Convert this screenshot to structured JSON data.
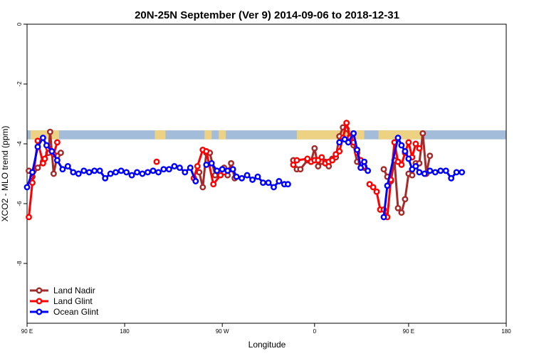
{
  "chart_data": {
    "type": "line",
    "title": "20N-25N September (Ver 9)   2014-09-06 to 2018-12-31",
    "xlabel": "Longitude",
    "ylabel": "XCO2 - MLO trend (ppm)",
    "xlim": [
      -90,
      180
    ],
    "ylim": [
      -10,
      0
    ],
    "x_ticks": [
      {
        "value": -90,
        "label": "90 E"
      },
      {
        "value": -35,
        "label": "180"
      },
      {
        "value": 20,
        "label": "90 W"
      },
      {
        "value": 72,
        "label": "0"
      },
      {
        "value": 125,
        "label": "90 E"
      },
      {
        "value": 180,
        "label": "180"
      }
    ],
    "y_ticks": [
      {
        "value": 0,
        "label": "0"
      },
      {
        "value": -2,
        "label": "-2"
      },
      {
        "value": -4,
        "label": "-4"
      },
      {
        "value": -6,
        "label": "-6"
      },
      {
        "value": -8,
        "label": "-8"
      }
    ],
    "grid": false,
    "legend_position": "bottom-left",
    "map_strip": {
      "y_range": [
        -3.85,
        -3.55
      ],
      "ocean_color": "#a3bcd9",
      "land_color": "#f5d47a"
    },
    "series": [
      {
        "name": "Land Nadir",
        "color": "#a52a2a",
        "segments": [
          [
            [
              -89,
              -4.9
            ],
            [
              -87,
              -5.1
            ],
            [
              -84,
              -4.8
            ],
            [
              -81,
              -4.6
            ],
            [
              -78,
              -4.3
            ],
            [
              -77,
              -3.6
            ],
            [
              -75,
              -5.0
            ],
            [
              -73,
              -4.4
            ],
            [
              -71,
              -4.3
            ]
          ],
          [
            [
              7,
              -4.95
            ],
            [
              9,
              -5.45
            ],
            [
              11,
              -4.3
            ],
            [
              13,
              -4.3
            ],
            [
              16,
              -5.05
            ],
            [
              19,
              -4.95
            ],
            [
              21,
              -4.8
            ],
            [
              23,
              -5.05
            ],
            [
              25,
              -4.65
            ],
            [
              27,
              -5.15
            ]
          ],
          [
            [
              60,
              -4.55
            ],
            [
              62,
              -4.85
            ],
            [
              64,
              -4.85
            ],
            [
              68,
              -4.55
            ],
            [
              70,
              -4.6
            ],
            [
              72,
              -4.15
            ],
            [
              74,
              -4.75
            ],
            [
              76,
              -4.6
            ],
            [
              78,
              -4.6
            ],
            [
              80,
              -4.75
            ],
            [
              82,
              -4.5
            ],
            [
              84,
              -4.45
            ],
            [
              86,
              -3.75
            ],
            [
              88,
              -3.45
            ],
            [
              90,
              -3.5
            ],
            [
              92,
              -3.75
            ],
            [
              94,
              -4.05
            ],
            [
              96,
              -4.6
            ],
            [
              98,
              -4.65
            ],
            [
              100,
              -4.8
            ]
          ],
          [
            [
              111,
              -4.85
            ],
            [
              113,
              -5.1
            ],
            [
              115,
              -5.25
            ],
            [
              117,
              -4.55
            ],
            [
              119,
              -6.15
            ],
            [
              121,
              -6.3
            ],
            [
              123,
              -5.85
            ],
            [
              125,
              -5.0
            ],
            [
              127,
              -5.05
            ],
            [
              129,
              -4.65
            ],
            [
              131,
              -4.65
            ],
            [
              133,
              -3.65
            ],
            [
              135,
              -5.0
            ],
            [
              137,
              -4.4
            ]
          ]
        ]
      },
      {
        "name": "Land Glint",
        "color": "#ff0000",
        "segments": [
          [
            [
              -89,
              -6.45
            ],
            [
              -87,
              -5.3
            ],
            [
              -84,
              -3.9
            ],
            [
              -81,
              -4.65
            ],
            [
              -80,
              -4.5
            ],
            [
              -78,
              -4.15
            ],
            [
              -75,
              -4.35
            ],
            [
              -73,
              -3.95
            ]
          ],
          [
            [
              -17,
              -4.6
            ]
          ],
          [
            [
              4,
              -5.15
            ],
            [
              6,
              -4.75
            ],
            [
              9,
              -4.2
            ],
            [
              11,
              -4.25
            ],
            [
              15,
              -5.35
            ],
            [
              19,
              -5.05
            ],
            [
              21,
              -4.95
            ],
            [
              25,
              -4.85
            ]
          ],
          [
            [
              60,
              -4.7
            ],
            [
              62,
              -4.55
            ],
            [
              68,
              -4.5
            ],
            [
              70,
              -4.6
            ],
            [
              72,
              -4.55
            ],
            [
              74,
              -4.55
            ],
            [
              76,
              -4.45
            ],
            [
              78,
              -4.65
            ],
            [
              80,
              -4.6
            ],
            [
              82,
              -4.55
            ],
            [
              84,
              -4.35
            ],
            [
              86,
              -4.25
            ],
            [
              88,
              -3.8
            ],
            [
              90,
              -3.3
            ],
            [
              92,
              -3.8
            ],
            [
              94,
              -3.95
            ],
            [
              96,
              -4.3
            ],
            [
              98,
              -4.55
            ],
            [
              100,
              -4.75
            ]
          ],
          [
            [
              103,
              -5.35
            ],
            [
              105,
              -5.45
            ],
            [
              107,
              -5.6
            ],
            [
              109,
              -6.2
            ],
            [
              111,
              -6.2
            ],
            [
              113,
              -6.45
            ],
            [
              115,
              -5.2
            ],
            [
              117,
              -3.95
            ],
            [
              119,
              -4.6
            ],
            [
              121,
              -4.7
            ],
            [
              123,
              -4.3
            ],
            [
              125,
              -3.95
            ],
            [
              127,
              -4.45
            ],
            [
              129,
              -4.0
            ],
            [
              131,
              -4.15
            ]
          ]
        ]
      },
      {
        "name": "Ocean Glint",
        "color": "#0000ff",
        "segments": [
          [
            [
              -90,
              -5.45
            ],
            [
              -87,
              -4.95
            ],
            [
              -84,
              -4.1
            ],
            [
              -81,
              -3.8
            ],
            [
              -79,
              -4.05
            ],
            [
              -76,
              -4.25
            ],
            [
              -73,
              -4.55
            ],
            [
              -70,
              -4.85
            ],
            [
              -67,
              -4.75
            ],
            [
              -64,
              -4.95
            ],
            [
              -61,
              -5.0
            ],
            [
              -58,
              -4.9
            ],
            [
              -55,
              -4.95
            ],
            [
              -52,
              -4.9
            ],
            [
              -49,
              -4.9
            ],
            [
              -46,
              -5.15
            ],
            [
              -43,
              -5.0
            ],
            [
              -40,
              -4.95
            ],
            [
              -37,
              -4.9
            ],
            [
              -34,
              -4.95
            ],
            [
              -31,
              -5.05
            ],
            [
              -28,
              -4.95
            ],
            [
              -25,
              -5.0
            ],
            [
              -22,
              -4.95
            ],
            [
              -19,
              -4.9
            ],
            [
              -16,
              -4.95
            ],
            [
              -13,
              -4.85
            ],
            [
              -10,
              -4.85
            ],
            [
              -7,
              -4.75
            ],
            [
              -4,
              -4.8
            ],
            [
              -1,
              -4.95
            ],
            [
              2,
              -4.8
            ],
            [
              5,
              -5.25
            ]
          ],
          [
            [
              11,
              -4.7
            ],
            [
              14,
              -4.65
            ],
            [
              17,
              -4.9
            ],
            [
              20,
              -4.85
            ],
            [
              23,
              -4.9
            ],
            [
              26,
              -4.85
            ],
            [
              28,
              -5.1
            ],
            [
              31,
              -5.15
            ],
            [
              34,
              -5.05
            ],
            [
              37,
              -5.2
            ],
            [
              40,
              -5.1
            ],
            [
              43,
              -5.3
            ],
            [
              46,
              -5.3
            ],
            [
              49,
              -5.45
            ],
            [
              52,
              -5.25
            ],
            [
              55,
              -5.35
            ],
            [
              57,
              -5.35
            ]
          ],
          [
            [
              86,
              -3.95
            ],
            [
              89,
              -3.85
            ],
            [
              91,
              -3.95
            ],
            [
              94,
              -3.65
            ],
            [
              96,
              -4.2
            ],
            [
              98,
              -4.8
            ],
            [
              100,
              -4.6
            ],
            [
              102,
              -4.9
            ]
          ],
          [
            [
              111,
              -6.45
            ],
            [
              113,
              -5.4
            ],
            [
              119,
              -3.8
            ],
            [
              121,
              -4.05
            ],
            [
              123,
              -4.25
            ],
            [
              125,
              -4.5
            ],
            [
              127,
              -4.85
            ],
            [
              129,
              -4.75
            ],
            [
              131,
              -4.95
            ],
            [
              134,
              -5.0
            ],
            [
              137,
              -4.9
            ],
            [
              140,
              -4.95
            ],
            [
              143,
              -4.9
            ],
            [
              146,
              -4.9
            ],
            [
              149,
              -5.15
            ],
            [
              152,
              -4.95
            ],
            [
              155,
              -4.95
            ]
          ]
        ]
      }
    ]
  }
}
